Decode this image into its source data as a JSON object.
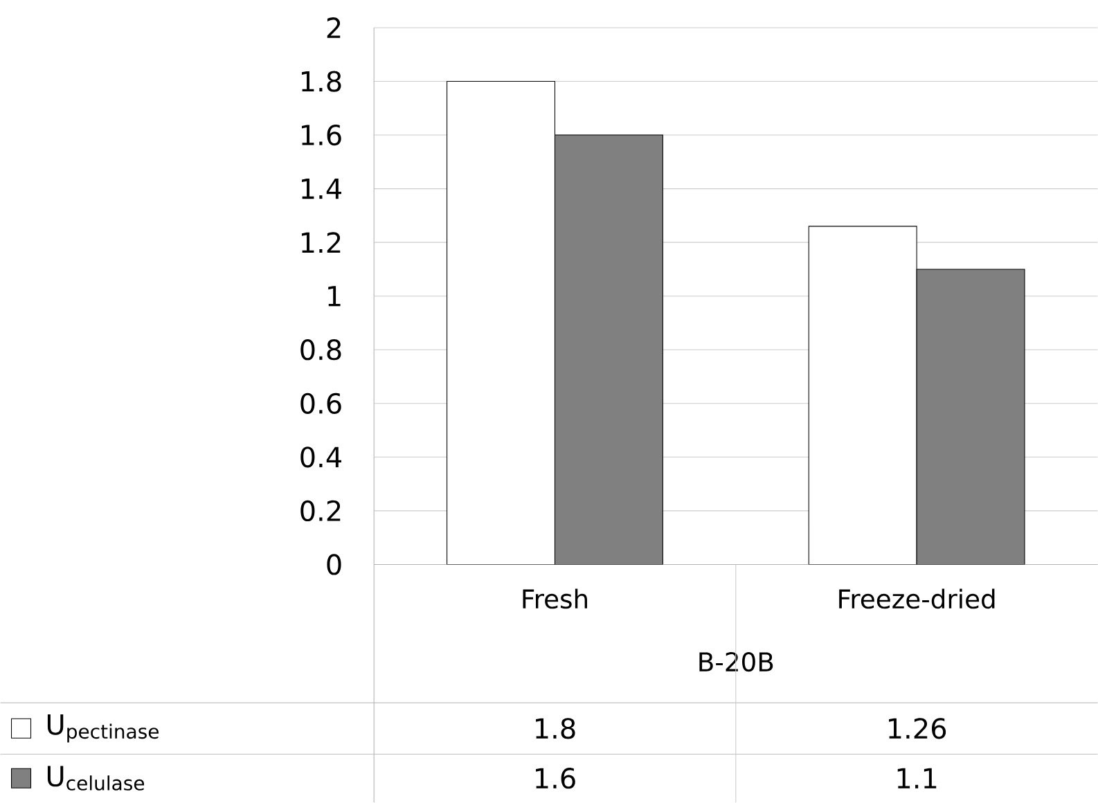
{
  "chart_data": {
    "type": "bar",
    "xlabel": "B-20B",
    "categories": [
      "Fresh",
      "Freeze-dried"
    ],
    "series": [
      {
        "name": "\\mathrm{U}_{\\mathrm{pectinase}}",
        "color": "#ffffff",
        "values": [
          1.8,
          1.26
        ]
      },
      {
        "name": "\\mathrm{U}_{\\mathrm{celulase}}",
        "color": "#808080",
        "values": [
          1.6,
          1.1
        ]
      }
    ],
    "ylim": [
      0,
      2
    ],
    "yticks": [
      0,
      0.2,
      0.4,
      0.6,
      0.8,
      1,
      1.2,
      1.4,
      1.6,
      1.8,
      2
    ],
    "grid": "y",
    "legend": "bottom",
    "data_labels": true
  }
}
